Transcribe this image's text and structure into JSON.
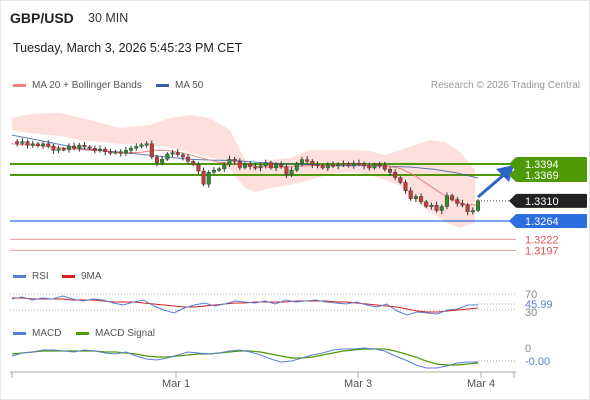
{
  "header": {
    "symbol": "GBP/USD",
    "timeframe": "30 MIN",
    "datetime": "Tuesday, March 3, 2026 5:45:23 PM CET",
    "credit": "Research © 2026 Trading Central"
  },
  "colors": {
    "ma20": "#f08080",
    "ma50": "#3a5fa0",
    "bb_fill": "#fde0dc",
    "resistance": "#4e9a06",
    "support": "#2a6ee0",
    "target": "#e05252",
    "rsi": "#5b7fd6",
    "rsi_ma": "#d02020",
    "macd": "#5b7fd6",
    "macd_signal": "#4e9a06",
    "arrow": "#2f63c8"
  },
  "legends": {
    "main": [
      {
        "label": "MA 20 + Bollinger Bands",
        "color": "#f08080"
      },
      {
        "label": "MA 50",
        "color": "#3a5fa0"
      }
    ],
    "rsi": [
      {
        "label": "RSI",
        "color": "#5b7fd6"
      },
      {
        "label": "9MA",
        "color": "#d02020"
      }
    ],
    "macd": [
      {
        "label": "MACD",
        "color": "#5b7fd6"
      },
      {
        "label": "MACD Signal",
        "color": "#4e9a06"
      }
    ]
  },
  "chart_data": [
    {
      "type": "candlestick",
      "x_ticks": [
        "Mar 1",
        "Mar 3",
        "Mar 4"
      ],
      "ylim": [
        1.315,
        1.344
      ],
      "levels": [
        {
          "label": "1.3394",
          "value": 1.3394,
          "kind": "resistance",
          "style": "box"
        },
        {
          "label": "1.3369",
          "value": 1.3369,
          "kind": "resistance",
          "style": "box"
        },
        {
          "label": "1.3310",
          "value": 1.331,
          "kind": "last",
          "style": "box"
        },
        {
          "label": "1.3264",
          "value": 1.3264,
          "kind": "support",
          "style": "box"
        },
        {
          "label": "1.3222",
          "value": 1.3222,
          "kind": "target",
          "style": "text"
        },
        {
          "label": "1.3197",
          "value": 1.3197,
          "kind": "target",
          "style": "text"
        }
      ],
      "close_series": [
        1.3445,
        1.3441,
        1.3445,
        1.3437,
        1.344,
        1.3436,
        1.344,
        1.3435,
        1.3425,
        1.3429,
        1.3427,
        1.3435,
        1.343,
        1.3437,
        1.3433,
        1.343,
        1.3425,
        1.3428,
        1.3422,
        1.342,
        1.3422,
        1.3418,
        1.3425,
        1.343,
        1.3434,
        1.3438,
        1.344,
        1.341,
        1.3397,
        1.3405,
        1.3417,
        1.342,
        1.3415,
        1.341,
        1.34,
        1.3393,
        1.3378,
        1.3348,
        1.3375,
        1.338,
        1.3383,
        1.3392,
        1.3405,
        1.34,
        1.3386,
        1.3394,
        1.3388,
        1.3385,
        1.339,
        1.3397,
        1.3385,
        1.3392,
        1.3388,
        1.337,
        1.338,
        1.3395,
        1.3404,
        1.34,
        1.3393,
        1.339,
        1.3385,
        1.3392,
        1.339,
        1.3393,
        1.3395,
        1.339,
        1.3396,
        1.3395,
        1.339,
        1.3385,
        1.3393,
        1.3391,
        1.3382,
        1.3375,
        1.3363,
        1.3352,
        1.3333,
        1.3315,
        1.332,
        1.3308,
        1.3297,
        1.33,
        1.3288,
        1.3297,
        1.3322,
        1.3313,
        1.3304,
        1.33,
        1.3285,
        1.3288,
        1.331
      ],
      "ma20": [
        1.344,
        1.3438,
        1.3436,
        1.3433,
        1.343,
        1.3428,
        1.3425,
        1.3424,
        1.3421,
        1.342,
        1.3421,
        1.3425,
        1.3425,
        1.342,
        1.3413,
        1.3405,
        1.3398,
        1.3395,
        1.3392,
        1.3389,
        1.3387,
        1.3387,
        1.3389,
        1.339,
        1.3391,
        1.3392,
        1.3393,
        1.3392,
        1.3391,
        1.3389,
        1.3384,
        1.337,
        1.335,
        1.333,
        1.3312,
        1.3302,
        1.33
      ],
      "ma50": [
        1.346,
        1.345,
        1.344,
        1.343,
        1.3425,
        1.342,
        1.3415,
        1.341,
        1.3405,
        1.3403,
        1.3402,
        1.3398,
        1.3395,
        1.3393,
        1.3391,
        1.339,
        1.339,
        1.3389,
        1.3387,
        1.3382,
        1.3374,
        1.3362
      ]
    },
    {
      "type": "line",
      "name": "RSI",
      "ylim": [
        30,
        70
      ],
      "ticks": [
        70,
        45.99,
        30
      ],
      "last": "45.99"
    },
    {
      "type": "line",
      "name": "MACD",
      "ticks": [
        0,
        -0.0
      ],
      "last_label": "-0.00"
    }
  ]
}
